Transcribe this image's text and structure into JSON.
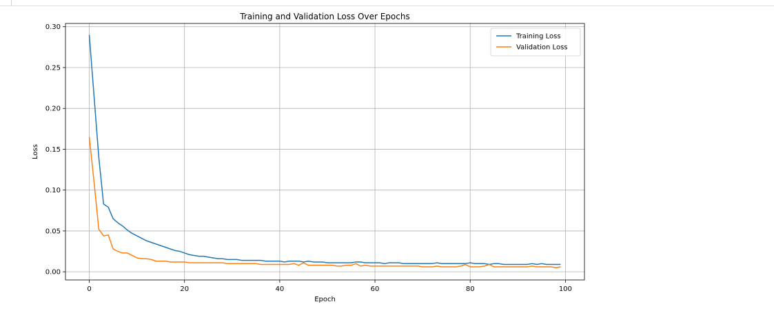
{
  "chart_data": {
    "type": "line",
    "title": "Training and Validation Loss Over Epochs",
    "xlabel": "Epoch",
    "ylabel": "Loss",
    "xlim": [
      -5,
      104
    ],
    "ylim": [
      -0.01,
      0.304
    ],
    "xticks": [
      0,
      20,
      40,
      60,
      80,
      100
    ],
    "yticks": [
      0.0,
      0.05,
      0.1,
      0.15,
      0.2,
      0.25,
      0.3
    ],
    "ytick_labels": [
      "0.00",
      "0.05",
      "0.10",
      "0.15",
      "0.20",
      "0.25",
      "0.30"
    ],
    "grid": true,
    "legend_position": "top-right",
    "x": [
      0,
      1,
      2,
      3,
      4,
      5,
      6,
      7,
      8,
      9,
      10,
      11,
      12,
      13,
      14,
      15,
      16,
      17,
      18,
      19,
      20,
      21,
      22,
      23,
      24,
      25,
      26,
      27,
      28,
      29,
      30,
      31,
      32,
      33,
      34,
      35,
      36,
      37,
      38,
      39,
      40,
      41,
      42,
      43,
      44,
      45,
      46,
      47,
      48,
      49,
      50,
      51,
      52,
      53,
      54,
      55,
      56,
      57,
      58,
      59,
      60,
      61,
      62,
      63,
      64,
      65,
      66,
      67,
      68,
      69,
      70,
      71,
      72,
      73,
      74,
      75,
      76,
      77,
      78,
      79,
      80,
      81,
      82,
      83,
      84,
      85,
      86,
      87,
      88,
      89,
      90,
      91,
      92,
      93,
      94,
      95,
      96,
      97,
      98,
      99
    ],
    "series": [
      {
        "name": "Training Loss",
        "color": "#1f77b4",
        "values": [
          0.29,
          0.215,
          0.14,
          0.083,
          0.079,
          0.065,
          0.06,
          0.056,
          0.051,
          0.047,
          0.044,
          0.041,
          0.038,
          0.036,
          0.034,
          0.032,
          0.03,
          0.028,
          0.026,
          0.025,
          0.023,
          0.021,
          0.02,
          0.019,
          0.019,
          0.018,
          0.017,
          0.016,
          0.016,
          0.015,
          0.015,
          0.015,
          0.014,
          0.014,
          0.014,
          0.014,
          0.014,
          0.013,
          0.013,
          0.013,
          0.013,
          0.012,
          0.013,
          0.013,
          0.013,
          0.012,
          0.013,
          0.012,
          0.012,
          0.012,
          0.011,
          0.011,
          0.011,
          0.011,
          0.011,
          0.011,
          0.012,
          0.012,
          0.011,
          0.011,
          0.011,
          0.011,
          0.01,
          0.011,
          0.011,
          0.011,
          0.01,
          0.01,
          0.01,
          0.01,
          0.01,
          0.01,
          0.01,
          0.011,
          0.01,
          0.01,
          0.01,
          0.01,
          0.01,
          0.01,
          0.011,
          0.01,
          0.01,
          0.01,
          0.009,
          0.01,
          0.01,
          0.009,
          0.009,
          0.009,
          0.009,
          0.009,
          0.009,
          0.01,
          0.009,
          0.01,
          0.009,
          0.009,
          0.009,
          0.009
        ]
      },
      {
        "name": "Validation Loss",
        "color": "#ff7f0e",
        "values": [
          0.165,
          0.11,
          0.052,
          0.044,
          0.045,
          0.028,
          0.025,
          0.023,
          0.023,
          0.02,
          0.017,
          0.016,
          0.016,
          0.015,
          0.013,
          0.013,
          0.013,
          0.012,
          0.012,
          0.012,
          0.012,
          0.011,
          0.011,
          0.011,
          0.011,
          0.011,
          0.011,
          0.011,
          0.011,
          0.01,
          0.01,
          0.01,
          0.01,
          0.01,
          0.01,
          0.01,
          0.009,
          0.009,
          0.009,
          0.009,
          0.009,
          0.009,
          0.009,
          0.01,
          0.008,
          0.011,
          0.008,
          0.008,
          0.008,
          0.008,
          0.008,
          0.008,
          0.007,
          0.007,
          0.008,
          0.008,
          0.01,
          0.007,
          0.008,
          0.007,
          0.007,
          0.007,
          0.007,
          0.007,
          0.007,
          0.007,
          0.007,
          0.007,
          0.007,
          0.007,
          0.006,
          0.006,
          0.006,
          0.007,
          0.006,
          0.006,
          0.006,
          0.006,
          0.007,
          0.009,
          0.006,
          0.006,
          0.006,
          0.007,
          0.009,
          0.006,
          0.006,
          0.006,
          0.006,
          0.006,
          0.006,
          0.006,
          0.006,
          0.007,
          0.006,
          0.006,
          0.006,
          0.006,
          0.005,
          0.006
        ]
      }
    ]
  }
}
